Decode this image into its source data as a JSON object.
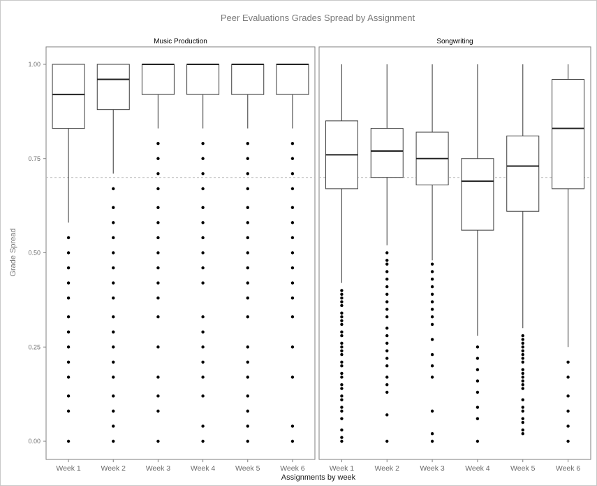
{
  "chart_data": {
    "type": "boxplot",
    "title": "Peer Evaluations Grades Spread by Assignment",
    "xlabel": "Assignments by week",
    "ylabel": "Grade Spread",
    "ylim": [
      -0.05,
      1.05
    ],
    "yticks": [
      0.0,
      0.25,
      0.5,
      0.75,
      1.0
    ],
    "ytick_labels": [
      "0.00",
      "0.25",
      "0.50",
      "0.75",
      "1.00"
    ],
    "reference_line": 0.7,
    "grid": false,
    "panels": [
      {
        "name": "Music Production",
        "categories": [
          "Week 1",
          "Week 2",
          "Week 3",
          "Week 4",
          "Week 5",
          "Week 6"
        ],
        "boxes": [
          {
            "category": "Week 1",
            "whisker_low": 0.58,
            "q1": 0.83,
            "median": 0.92,
            "q3": 1.0,
            "whisker_high": 1.0,
            "outliers": [
              0.0,
              0.08,
              0.12,
              0.17,
              0.21,
              0.25,
              0.29,
              0.33,
              0.38,
              0.42,
              0.46,
              0.5,
              0.54
            ]
          },
          {
            "category": "Week 2",
            "whisker_low": 0.71,
            "q1": 0.88,
            "median": 0.96,
            "q3": 1.0,
            "whisker_high": 1.0,
            "outliers": [
              0.0,
              0.04,
              0.08,
              0.12,
              0.17,
              0.21,
              0.25,
              0.29,
              0.33,
              0.38,
              0.42,
              0.46,
              0.5,
              0.54,
              0.58,
              0.62,
              0.67
            ]
          },
          {
            "category": "Week 3",
            "whisker_low": 0.83,
            "q1": 0.92,
            "median": 1.0,
            "q3": 1.0,
            "whisker_high": 1.0,
            "outliers": [
              0.0,
              0.08,
              0.12,
              0.17,
              0.25,
              0.33,
              0.38,
              0.42,
              0.46,
              0.5,
              0.54,
              0.58,
              0.62,
              0.67,
              0.71,
              0.75,
              0.79
            ]
          },
          {
            "category": "Week 4",
            "whisker_low": 0.83,
            "q1": 0.92,
            "median": 1.0,
            "q3": 1.0,
            "whisker_high": 1.0,
            "outliers": [
              0.0,
              0.04,
              0.12,
              0.17,
              0.21,
              0.25,
              0.29,
              0.33,
              0.42,
              0.46,
              0.5,
              0.54,
              0.58,
              0.62,
              0.67,
              0.71,
              0.75,
              0.79
            ]
          },
          {
            "category": "Week 5",
            "whisker_low": 0.83,
            "q1": 0.92,
            "median": 1.0,
            "q3": 1.0,
            "whisker_high": 1.0,
            "outliers": [
              0.0,
              0.04,
              0.08,
              0.12,
              0.17,
              0.21,
              0.25,
              0.33,
              0.38,
              0.42,
              0.46,
              0.5,
              0.54,
              0.58,
              0.62,
              0.67,
              0.71,
              0.75,
              0.79
            ]
          },
          {
            "category": "Week 6",
            "whisker_low": 0.83,
            "q1": 0.92,
            "median": 1.0,
            "q3": 1.0,
            "whisker_high": 1.0,
            "outliers": [
              0.0,
              0.04,
              0.17,
              0.25,
              0.33,
              0.38,
              0.42,
              0.46,
              0.5,
              0.54,
              0.58,
              0.62,
              0.67,
              0.71,
              0.75,
              0.79
            ]
          }
        ]
      },
      {
        "name": "Songwriting",
        "categories": [
          "Week 1",
          "Week 2",
          "Week 3",
          "Week 4",
          "Week 5",
          "Week 6"
        ],
        "boxes": [
          {
            "category": "Week 1",
            "whisker_low": 0.42,
            "q1": 0.67,
            "median": 0.76,
            "q3": 0.85,
            "whisker_high": 1.0,
            "outliers": [
              0.0,
              0.01,
              0.03,
              0.06,
              0.08,
              0.09,
              0.11,
              0.12,
              0.14,
              0.15,
              0.17,
              0.18,
              0.2,
              0.21,
              0.23,
              0.24,
              0.25,
              0.26,
              0.28,
              0.29,
              0.31,
              0.32,
              0.33,
              0.34,
              0.36,
              0.37,
              0.38,
              0.39,
              0.4
            ]
          },
          {
            "category": "Week 2",
            "whisker_low": 0.52,
            "q1": 0.7,
            "median": 0.77,
            "q3": 0.83,
            "whisker_high": 1.0,
            "outliers": [
              0.0,
              0.07,
              0.13,
              0.15,
              0.17,
              0.2,
              0.22,
              0.24,
              0.26,
              0.28,
              0.3,
              0.33,
              0.35,
              0.37,
              0.39,
              0.41,
              0.43,
              0.45,
              0.47,
              0.48,
              0.5
            ]
          },
          {
            "category": "Week 3",
            "whisker_low": 0.48,
            "q1": 0.68,
            "median": 0.75,
            "q3": 0.82,
            "whisker_high": 1.0,
            "outliers": [
              0.0,
              0.02,
              0.08,
              0.17,
              0.2,
              0.23,
              0.27,
              0.31,
              0.33,
              0.35,
              0.37,
              0.39,
              0.41,
              0.43,
              0.45,
              0.47
            ]
          },
          {
            "category": "Week 4",
            "whisker_low": 0.28,
            "q1": 0.56,
            "median": 0.69,
            "q3": 0.75,
            "whisker_high": 1.0,
            "outliers": [
              0.0,
              0.06,
              0.09,
              0.13,
              0.16,
              0.19,
              0.22,
              0.25
            ]
          },
          {
            "category": "Week 5",
            "whisker_low": 0.3,
            "q1": 0.61,
            "median": 0.73,
            "q3": 0.81,
            "whisker_high": 1.0,
            "outliers": [
              0.02,
              0.03,
              0.05,
              0.06,
              0.08,
              0.09,
              0.11,
              0.14,
              0.15,
              0.16,
              0.17,
              0.18,
              0.19,
              0.21,
              0.22,
              0.23,
              0.24,
              0.25,
              0.26,
              0.27,
              0.28
            ]
          },
          {
            "category": "Week 6",
            "whisker_low": 0.25,
            "q1": 0.67,
            "median": 0.83,
            "q3": 0.96,
            "whisker_high": 1.0,
            "outliers": [
              0.0,
              0.04,
              0.08,
              0.12,
              0.17,
              0.21
            ]
          }
        ]
      }
    ]
  }
}
